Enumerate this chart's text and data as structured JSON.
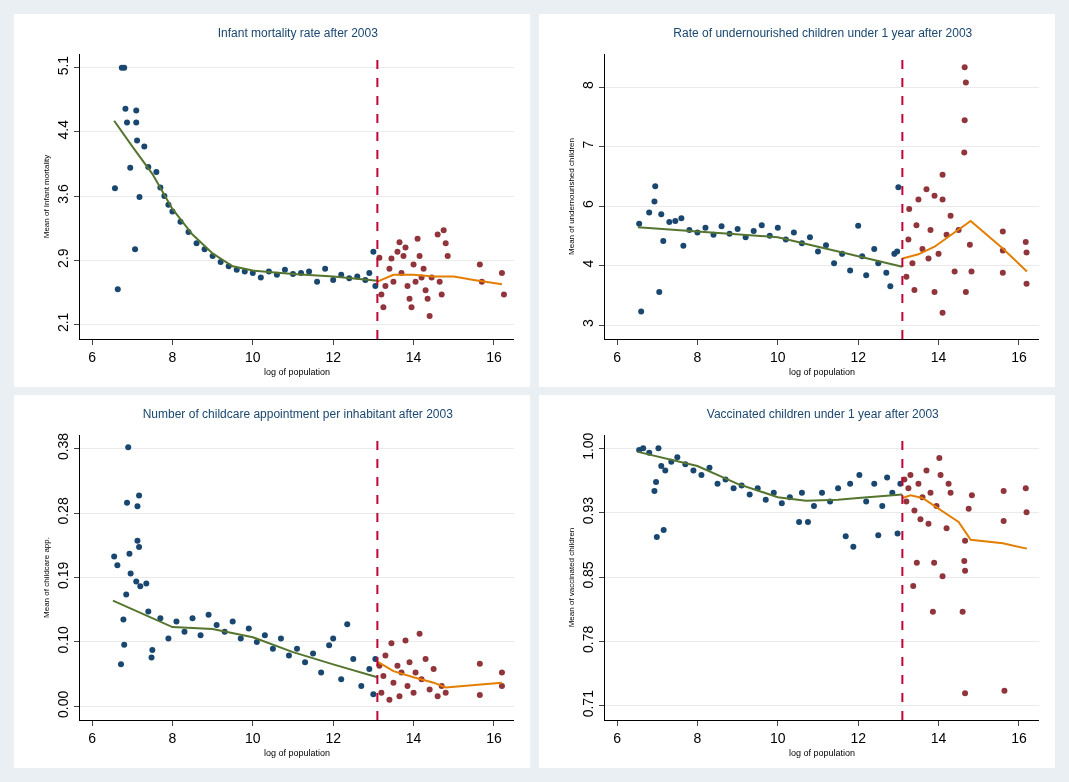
{
  "chart_data": [
    {
      "type": "scatter",
      "title": "Infant mortality rate after 2003",
      "xlabel": "log of population",
      "ylabel": "Mean of Infant mortality",
      "xlim": [
        5.7,
        16.5
      ],
      "xticks": [
        6,
        8,
        10,
        12,
        14,
        16
      ],
      "ylim": [
        1.93,
        5.26
      ],
      "yticks": [
        {
          "value": 2.1,
          "label": "2.1"
        },
        {
          "value": 2.85,
          "label": "2.9"
        },
        {
          "value": 3.6,
          "label": "3.6"
        },
        {
          "value": 4.35,
          "label": "4.4"
        },
        {
          "value": 5.1,
          "label": "5.1"
        }
      ],
      "grid": "y",
      "marker": "circle",
      "line_style": "solid",
      "ref_lines": [
        {
          "axis": "x",
          "value": 13.1,
          "color": "#c10534",
          "line_style": "dashed"
        }
      ],
      "series": [
        {
          "type": "scatter",
          "color": "#1a476f",
          "x": [
            6.57,
            6.64,
            6.74,
            6.8,
            6.83,
            6.87,
            6.95,
            7.07,
            7.1,
            7.1,
            7.12,
            7.18,
            7.3,
            7.4,
            7.6,
            7.7,
            7.8,
            7.9,
            8.0,
            8.2,
            8.4,
            8.6,
            8.8,
            9.0,
            9.2,
            9.4,
            9.6,
            9.8,
            10.0,
            10.2,
            10.4,
            10.6,
            10.8,
            11.0,
            11.2,
            11.4,
            11.6,
            11.8,
            12.0,
            12.2,
            12.4,
            12.6,
            12.8,
            12.9,
            13.0,
            13.05
          ],
          "values": [
            3.69,
            2.51,
            5.1,
            5.1,
            4.62,
            4.46,
            3.93,
            2.98,
            4.6,
            4.46,
            4.25,
            3.59,
            4.18,
            3.94,
            3.88,
            3.7,
            3.6,
            3.5,
            3.42,
            3.3,
            3.18,
            3.05,
            2.98,
            2.9,
            2.83,
            2.78,
            2.74,
            2.72,
            2.7,
            2.65,
            2.72,
            2.68,
            2.74,
            2.69,
            2.7,
            2.72,
            2.6,
            2.75,
            2.62,
            2.68,
            2.64,
            2.66,
            2.62,
            2.7,
            2.95,
            2.55
          ]
        },
        {
          "type": "scatter",
          "color": "#90353b",
          "x": [
            13.15,
            13.2,
            13.25,
            13.3,
            13.4,
            13.45,
            13.5,
            13.6,
            13.65,
            13.7,
            13.75,
            13.8,
            13.85,
            13.9,
            13.95,
            14.0,
            14.05,
            14.1,
            14.15,
            14.2,
            14.25,
            14.3,
            14.35,
            14.4,
            14.45,
            14.6,
            14.65,
            14.7,
            14.75,
            14.8,
            14.85,
            15.65,
            15.7,
            16.2,
            16.25
          ],
          "values": [
            2.88,
            2.45,
            2.3,
            2.55,
            2.75,
            2.87,
            2.6,
            2.95,
            3.06,
            2.7,
            2.9,
            3.0,
            2.55,
            2.4,
            2.3,
            2.8,
            2.6,
            3.1,
            2.9,
            2.65,
            2.75,
            2.5,
            2.4,
            2.2,
            2.65,
            3.15,
            2.6,
            2.45,
            3.2,
            3.05,
            2.9,
            2.8,
            2.6,
            2.7,
            2.45
          ]
        },
        {
          "type": "line",
          "marker": "none",
          "color": "#55752f",
          "x": [
            6.55,
            7,
            7.5,
            8,
            8.5,
            9,
            9.5,
            10,
            11,
            12,
            13.1
          ],
          "values": [
            4.48,
            4.18,
            3.86,
            3.45,
            3.15,
            2.93,
            2.78,
            2.73,
            2.69,
            2.66,
            2.61
          ]
        },
        {
          "type": "line",
          "marker": "none",
          "color": "#e37e00",
          "x": [
            13.1,
            13.5,
            14,
            14.5,
            15,
            15.5,
            16.2
          ],
          "values": [
            2.6,
            2.68,
            2.68,
            2.66,
            2.66,
            2.62,
            2.57
          ]
        }
      ]
    },
    {
      "type": "scatter",
      "title": "Rate of undernourished children under 1 year after 2003",
      "xlabel": "log of population",
      "ylabel": "Mean of undernourished children",
      "xlim": [
        5.7,
        16.5
      ],
      "xticks": [
        6,
        8,
        10,
        12,
        14,
        16
      ],
      "ylim": [
        2.71,
        8.7
      ],
      "yticks": [
        {
          "value": 3,
          "label": "3"
        },
        {
          "value": 4.25,
          "label": "4"
        },
        {
          "value": 5.5,
          "label": "6"
        },
        {
          "value": 6.75,
          "label": "7"
        },
        {
          "value": 8,
          "label": "8"
        }
      ],
      "grid": "y",
      "marker": "circle",
      "line_style": "solid",
      "ref_lines": [
        {
          "axis": "x",
          "value": 13.1,
          "color": "#c10534",
          "line_style": "dashed"
        }
      ],
      "series": [
        {
          "type": "scatter",
          "color": "#1a476f",
          "x": [
            6.55,
            6.6,
            6.8,
            6.93,
            6.95,
            7.05,
            7.1,
            7.15,
            7.3,
            7.45,
            7.6,
            7.65,
            7.8,
            8.0,
            8.2,
            8.4,
            8.6,
            8.8,
            9.0,
            9.2,
            9.4,
            9.6,
            9.8,
            10.0,
            10.2,
            10.4,
            10.6,
            10.8,
            11.0,
            11.2,
            11.4,
            11.6,
            11.8,
            12.0,
            12.1,
            12.2,
            12.4,
            12.5,
            12.7,
            12.8,
            12.9,
            13.0,
            12.97
          ],
          "values": [
            5.13,
            3.29,
            5.37,
            5.6,
            5.92,
            3.7,
            5.33,
            4.77,
            5.17,
            5.19,
            5.25,
            4.67,
            5.0,
            4.95,
            5.05,
            4.9,
            5.08,
            4.92,
            5.02,
            4.85,
            4.98,
            5.1,
            4.88,
            5.05,
            4.8,
            4.95,
            4.72,
            4.85,
            4.55,
            4.68,
            4.3,
            4.5,
            4.15,
            5.09,
            4.45,
            4.05,
            4.6,
            4.3,
            4.1,
            3.82,
            4.5,
            5.9,
            4.55
          ]
        },
        {
          "type": "scatter",
          "color": "#90353b",
          "x": [
            13.2,
            13.25,
            13.27,
            13.35,
            13.4,
            13.45,
            13.5,
            13.6,
            13.7,
            13.75,
            13.8,
            13.9,
            13.9,
            14.0,
            14.1,
            14.1,
            14.1,
            14.2,
            14.3,
            14.4,
            14.5,
            14.64,
            14.65,
            14.65,
            14.68,
            14.68,
            14.78,
            14.82,
            15.6,
            15.6,
            15.6,
            16.17,
            16.19,
            16.19
          ],
          "values": [
            4.02,
            4.8,
            5.44,
            4.3,
            3.74,
            5.1,
            5.64,
            4.6,
            5.86,
            4.4,
            5.0,
            5.72,
            3.7,
            4.5,
            5.64,
            6.16,
            3.26,
            4.9,
            5.3,
            4.13,
            5.0,
            6.63,
            7.31,
            8.42,
            8.1,
            3.7,
            4.69,
            4.13,
            4.97,
            4.57,
            4.1,
            4.75,
            4.53,
            3.87
          ]
        },
        {
          "type": "line",
          "marker": "none",
          "color": "#55752f",
          "x": [
            6.52,
            8,
            10,
            11,
            12,
            13.1
          ],
          "values": [
            5.06,
            4.97,
            4.85,
            4.65,
            4.45,
            4.23
          ]
        },
        {
          "type": "line",
          "marker": "none",
          "color": "#e37e00",
          "x": [
            13.1,
            13.5,
            13.9,
            14.3,
            14.8,
            15.6,
            16.2
          ],
          "values": [
            4.4,
            4.49,
            4.65,
            4.89,
            5.19,
            4.61,
            4.13
          ]
        }
      ]
    },
    {
      "type": "scatter",
      "title": "Number of childcare appointment per inhabitant after 2003",
      "xlabel": "log of population",
      "ylabel": "Mean of childcare app.",
      "xlim": [
        5.7,
        16.5
      ],
      "xticks": [
        6,
        8,
        10,
        12,
        14,
        16
      ],
      "ylim": [
        -0.02,
        0.4
      ],
      "yticks": [
        {
          "value": 0,
          "label": "0.00"
        },
        {
          "value": 0.095,
          "label": "0.10"
        },
        {
          "value": 0.19,
          "label": "0.19"
        },
        {
          "value": 0.285,
          "label": "0.28"
        },
        {
          "value": 0.38,
          "label": "0.38"
        }
      ],
      "grid": "y",
      "marker": "circle",
      "line_style": "solid",
      "ref_lines": [
        {
          "axis": "x",
          "value": 13.1,
          "color": "#c10534",
          "line_style": "dashed"
        }
      ],
      "series": [
        {
          "type": "scatter",
          "color": "#1a476f",
          "x": [
            6.55,
            6.63,
            6.72,
            6.78,
            6.8,
            6.85,
            6.87,
            6.9,
            6.93,
            6.96,
            7.1,
            7.13,
            7.13,
            7.17,
            7.17,
            7.2,
            7.35,
            7.4,
            7.48,
            7.5,
            7.7,
            7.9,
            8.1,
            8.3,
            8.5,
            8.7,
            8.9,
            9.1,
            9.3,
            9.5,
            9.7,
            9.9,
            10.1,
            10.3,
            10.5,
            10.7,
            10.9,
            11.1,
            11.3,
            11.5,
            11.7,
            11.9,
            12.0,
            12.2,
            12.35,
            12.5,
            12.7,
            12.9,
            13.0,
            13.05
          ],
          "values": [
            0.221,
            0.208,
            0.062,
            0.128,
            0.091,
            0.165,
            0.3,
            0.382,
            0.225,
            0.196,
            0.184,
            0.295,
            0.244,
            0.311,
            0.235,
            0.177,
            0.181,
            0.14,
            0.072,
            0.083,
            0.13,
            0.1,
            0.125,
            0.11,
            0.13,
            0.105,
            0.135,
            0.12,
            0.11,
            0.125,
            0.1,
            0.115,
            0.095,
            0.105,
            0.085,
            0.1,
            0.075,
            0.085,
            0.065,
            0.078,
            0.05,
            0.09,
            0.1,
            0.04,
            0.121,
            0.07,
            0.03,
            0.055,
            0.018,
            0.07
          ]
        },
        {
          "type": "scatter",
          "color": "#90353b",
          "x": [
            13.15,
            13.2,
            13.25,
            13.3,
            13.4,
            13.45,
            13.5,
            13.6,
            13.65,
            13.7,
            13.8,
            13.85,
            13.9,
            14.0,
            14.05,
            14.15,
            14.2,
            14.3,
            14.4,
            14.5,
            14.6,
            14.7,
            14.8,
            15.65,
            15.65,
            16.2,
            16.2
          ],
          "values": [
            0.06,
            0.02,
            0.045,
            0.075,
            0.01,
            0.093,
            0.035,
            0.06,
            0.015,
            0.05,
            0.097,
            0.03,
            0.065,
            0.02,
            0.05,
            0.107,
            0.04,
            0.07,
            0.025,
            0.055,
            0.015,
            0.03,
            0.02,
            0.063,
            0.017,
            0.05,
            0.03
          ]
        },
        {
          "type": "line",
          "marker": "none",
          "color": "#55752f",
          "x": [
            6.52,
            8,
            9,
            10,
            11,
            12,
            13.1
          ],
          "values": [
            0.156,
            0.117,
            0.114,
            0.102,
            0.08,
            0.062,
            0.043
          ]
        },
        {
          "type": "line",
          "marker": "none",
          "color": "#e37e00",
          "x": [
            13.1,
            13.5,
            14,
            14.5,
            14.8,
            15.6,
            16.2
          ],
          "values": [
            0.066,
            0.052,
            0.043,
            0.035,
            0.028,
            0.032,
            0.035
          ]
        }
      ]
    },
    {
      "type": "scatter",
      "title": "Vaccinated children under 1 year after 2003",
      "xlabel": "log of population",
      "ylabel": "Mean of vaccinated children",
      "xlim": [
        5.7,
        16.5
      ],
      "xticks": [
        6,
        8,
        10,
        12,
        14,
        16
      ],
      "ylim": [
        0.694,
        1.015
      ],
      "yticks": [
        {
          "value": 0.71,
          "label": "0.71"
        },
        {
          "value": 0.7825,
          "label": "0.78"
        },
        {
          "value": 0.855,
          "label": "0.85"
        },
        {
          "value": 0.9275,
          "label": "0.93"
        },
        {
          "value": 1.0,
          "label": "1.00"
        }
      ],
      "grid": "y",
      "marker": "circle",
      "line_style": "solid",
      "ref_lines": [
        {
          "axis": "x",
          "value": 13.1,
          "color": "#c10534",
          "line_style": "dashed"
        }
      ],
      "series": [
        {
          "type": "scatter",
          "color": "#1a476f",
          "x": [
            6.55,
            6.65,
            6.8,
            6.93,
            6.97,
            6.99,
            7.03,
            7.1,
            7.16,
            7.2,
            7.35,
            7.5,
            7.7,
            7.9,
            8.1,
            8.3,
            8.5,
            8.7,
            8.9,
            9.1,
            9.3,
            9.5,
            9.7,
            9.9,
            10.1,
            10.3,
            10.53,
            10.6,
            10.75,
            10.9,
            11.1,
            11.3,
            11.5,
            11.69,
            11.8,
            11.88,
            12.03,
            12.2,
            12.4,
            12.5,
            12.6,
            12.72,
            12.85,
            12.98,
            13.05
          ],
          "values": [
            0.998,
            1.0,
            0.995,
            0.952,
            0.962,
            0.9,
            1.0,
            0.98,
            0.908,
            0.975,
            0.985,
            0.99,
            0.982,
            0.975,
            0.97,
            0.978,
            0.96,
            0.965,
            0.955,
            0.958,
            0.948,
            0.955,
            0.942,
            0.95,
            0.938,
            0.945,
            0.917,
            0.95,
            0.917,
            0.935,
            0.95,
            0.94,
            0.955,
            0.901,
            0.96,
            0.889,
            0.97,
            0.94,
            0.96,
            0.902,
            0.935,
            0.967,
            0.95,
            0.904,
            0.96
          ]
        },
        {
          "type": "scatter",
          "color": "#90353b",
          "x": [
            13.15,
            13.2,
            13.25,
            13.3,
            13.37,
            13.4,
            13.46,
            13.5,
            13.55,
            13.6,
            13.7,
            13.75,
            13.8,
            13.86,
            13.89,
            13.95,
            14.02,
            14.05,
            14.1,
            14.2,
            14.25,
            14.3,
            14.6,
            14.64,
            14.66,
            14.66,
            14.66,
            14.75,
            14.83,
            15.62,
            15.62,
            15.64,
            16.17,
            16.19
          ],
          "values": [
            0.965,
            0.94,
            0.955,
            0.97,
            0.845,
            0.93,
            0.871,
            0.96,
            0.92,
            0.945,
            0.975,
            0.915,
            0.95,
            0.816,
            0.871,
            0.935,
            0.989,
            0.97,
            0.856,
            0.91,
            0.96,
            0.95,
            0.816,
            0.873,
            0.862,
            0.724,
            0.896,
            0.932,
            0.947,
            0.952,
            0.918,
            0.727,
            0.955,
            0.928
          ]
        },
        {
          "type": "line",
          "marker": "none",
          "color": "#55752f",
          "x": [
            6.52,
            8,
            9,
            10,
            10.7,
            11.5,
            12,
            13.1
          ],
          "values": [
            0.996,
            0.98,
            0.96,
            0.945,
            0.941,
            0.942,
            0.944,
            0.948
          ]
        },
        {
          "type": "line",
          "marker": "none",
          "color": "#e37e00",
          "x": [
            13.1,
            13.3,
            13.6,
            14,
            14.5,
            14.8,
            15.6,
            16.2
          ],
          "values": [
            0.944,
            0.947,
            0.944,
            0.932,
            0.917,
            0.897,
            0.893,
            0.887
          ]
        }
      ]
    }
  ]
}
